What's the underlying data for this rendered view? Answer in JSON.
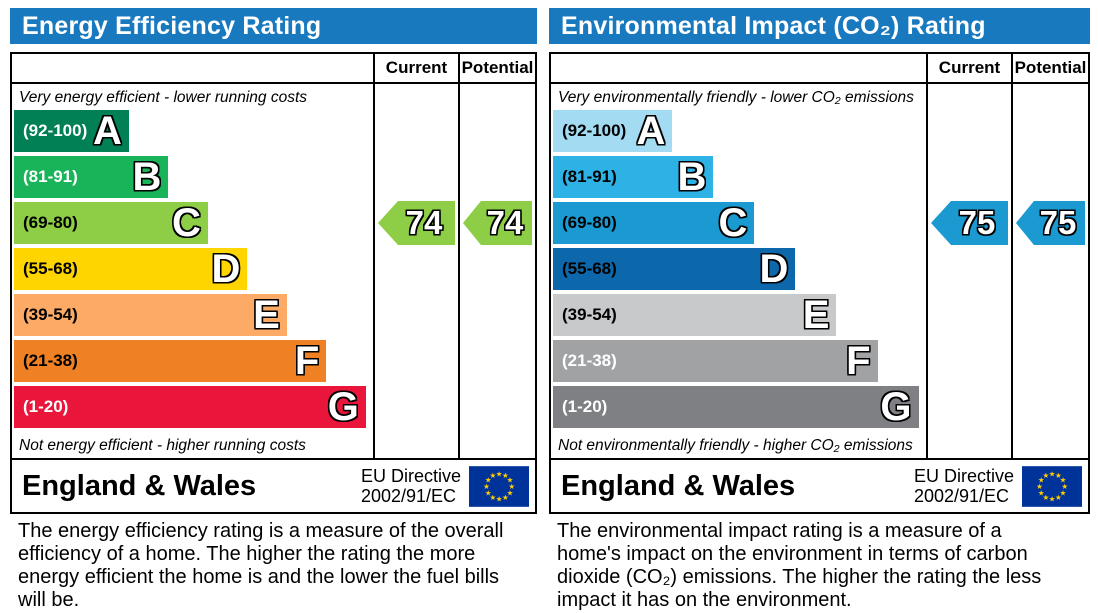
{
  "colors": {
    "header_bg": "#1879bf",
    "flag_bg": "#003399",
    "flag_star": "#ffcc00"
  },
  "panels": [
    {
      "title": "Energy Efficiency Rating",
      "columns": {
        "current": "Current",
        "potential": "Potential"
      },
      "top_label": "Very energy efficient - lower running costs",
      "bottom_label": "Not energy efficient - higher running costs",
      "bands": [
        {
          "letter": "A",
          "range": "(92-100)",
          "color": "#008054",
          "text_color": "#ffffff",
          "width_pct": 32
        },
        {
          "letter": "B",
          "range": "(81-91)",
          "color": "#19b459",
          "text_color": "#ffffff",
          "width_pct": 43
        },
        {
          "letter": "C",
          "range": "(69-80)",
          "color": "#8dce46",
          "text_color": "#000000",
          "width_pct": 54
        },
        {
          "letter": "D",
          "range": "(55-68)",
          "color": "#ffd500",
          "text_color": "#000000",
          "width_pct": 65
        },
        {
          "letter": "E",
          "range": "(39-54)",
          "color": "#fcaa65",
          "text_color": "#000000",
          "width_pct": 76
        },
        {
          "letter": "F",
          "range": "(21-38)",
          "color": "#ef8023",
          "text_color": "#000000",
          "width_pct": 87
        },
        {
          "letter": "G",
          "range": "(1-20)",
          "color": "#e9153b",
          "text_color": "#ffffff",
          "width_pct": 98
        }
      ],
      "current": {
        "value": "74",
        "color": "#8dce46"
      },
      "potential": {
        "value": "74",
        "color": "#8dce46"
      },
      "footer": {
        "region": "England & Wales",
        "directive_line1": "EU Directive",
        "directive_line2": "2002/91/EC"
      },
      "description": "The energy efficiency rating is a measure of the overall efficiency of a home. The higher the rating the more energy efficient the home is and the lower the fuel bills will be."
    },
    {
      "title": "Environmental Impact (CO₂) Rating",
      "columns": {
        "current": "Current",
        "potential": "Potential"
      },
      "top_label": "Very environmentally friendly - lower CO₂ emissions",
      "bottom_label": "Not environmentally friendly - higher CO₂ emissions",
      "bands": [
        {
          "letter": "A",
          "range": "(92-100)",
          "color": "#a3dbf3",
          "text_color": "#000000",
          "width_pct": 32
        },
        {
          "letter": "B",
          "range": "(81-91)",
          "color": "#2eb2e6",
          "text_color": "#000000",
          "width_pct": 43
        },
        {
          "letter": "C",
          "range": "(69-80)",
          "color": "#1b9ad2",
          "text_color": "#000000",
          "width_pct": 54
        },
        {
          "letter": "D",
          "range": "(55-68)",
          "color": "#0c68ab",
          "text_color": "#000000",
          "width_pct": 65
        },
        {
          "letter": "E",
          "range": "(39-54)",
          "color": "#c8c9cb",
          "text_color": "#000000",
          "width_pct": 76
        },
        {
          "letter": "F",
          "range": "(21-38)",
          "color": "#a1a2a4",
          "text_color": "#ffffff",
          "width_pct": 87
        },
        {
          "letter": "G",
          "range": "(1-20)",
          "color": "#7e8083",
          "text_color": "#ffffff",
          "width_pct": 98
        }
      ],
      "current": {
        "value": "75",
        "color": "#1b9ad2"
      },
      "potential": {
        "value": "75",
        "color": "#1b9ad2"
      },
      "footer": {
        "region": "England & Wales",
        "directive_line1": "EU Directive",
        "directive_line2": "2002/91/EC"
      },
      "description": "The environmental impact rating is a measure of a home's impact on the environment in terms of carbon dioxide (CO₂) emissions. The higher the rating the less impact it has on the environment."
    }
  ],
  "chart_data": [
    {
      "type": "bar",
      "title": "Energy Efficiency Rating",
      "categories": [
        "A",
        "B",
        "C",
        "D",
        "E",
        "F",
        "G"
      ],
      "band_ranges": [
        "92-100",
        "81-91",
        "69-80",
        "55-68",
        "39-54",
        "21-38",
        "1-20"
      ],
      "band_widths_pct": [
        32,
        43,
        54,
        65,
        76,
        87,
        98
      ],
      "band_colors": [
        "#008054",
        "#19b459",
        "#8dce46",
        "#ffd500",
        "#fcaa65",
        "#ef8023",
        "#e9153b"
      ],
      "series": [
        {
          "name": "Current",
          "values": [
            74
          ],
          "band": "C"
        },
        {
          "name": "Potential",
          "values": [
            74
          ],
          "band": "C"
        }
      ],
      "value_range": [
        1,
        100
      ],
      "xlabel": "",
      "ylabel": "",
      "annotations": [
        "Very energy efficient - lower running costs",
        "Not energy efficient - higher running costs"
      ]
    },
    {
      "type": "bar",
      "title": "Environmental Impact (CO₂) Rating",
      "categories": [
        "A",
        "B",
        "C",
        "D",
        "E",
        "F",
        "G"
      ],
      "band_ranges": [
        "92-100",
        "81-91",
        "69-80",
        "55-68",
        "39-54",
        "21-38",
        "1-20"
      ],
      "band_widths_pct": [
        32,
        43,
        54,
        65,
        76,
        87,
        98
      ],
      "band_colors": [
        "#a3dbf3",
        "#2eb2e6",
        "#1b9ad2",
        "#0c68ab",
        "#c8c9cb",
        "#a1a2a4",
        "#7e8083"
      ],
      "series": [
        {
          "name": "Current",
          "values": [
            75
          ],
          "band": "C"
        },
        {
          "name": "Potential",
          "values": [
            75
          ],
          "band": "C"
        }
      ],
      "value_range": [
        1,
        100
      ],
      "xlabel": "",
      "ylabel": "",
      "annotations": [
        "Very environmentally friendly - lower CO₂ emissions",
        "Not environmentally friendly - higher CO₂ emissions"
      ]
    }
  ]
}
